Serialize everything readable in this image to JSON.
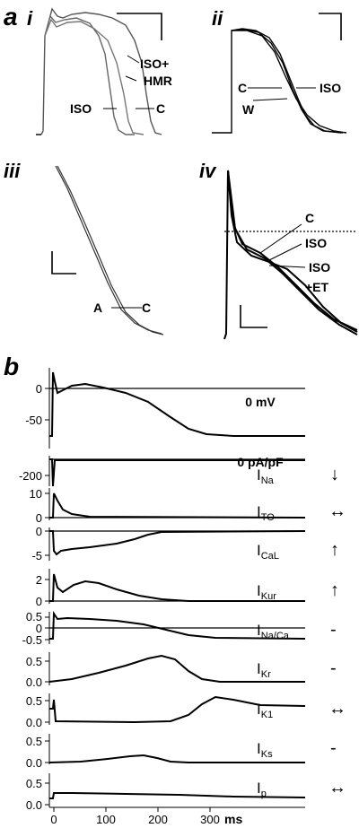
{
  "panel_a": {
    "letter": "a",
    "sub_i": "i",
    "sub_ii": "ii",
    "sub_iii": "iii",
    "sub_iv": "iv",
    "i_labels": [
      "ISO+",
      "HMR",
      "ISO",
      "C"
    ],
    "ii_labels": [
      "C",
      "ISO",
      "W"
    ],
    "iii_labels": [
      "A",
      "C"
    ],
    "iv_labels": [
      "C",
      "ISO",
      "ISO",
      "+ET"
    ]
  },
  "panel_b": {
    "letter": "b",
    "vm_label": "0 mV",
    "ina_label": "0 pA/pF",
    "x_ticks": [
      "0",
      "100",
      "200",
      "300"
    ],
    "x_unit": "ms",
    "rows": [
      {
        "ticks": [
          "0",
          "-50"
        ],
        "current": "I",
        "sub": "",
        "arrow": ""
      },
      {
        "ticks": [
          "-200"
        ],
        "current": "I",
        "sub": "Na",
        "arrow": "↓"
      },
      {
        "ticks": [
          "10",
          "0"
        ],
        "current": "I",
        "sub": "TO",
        "arrow": "↔"
      },
      {
        "ticks": [
          "0",
          "-5"
        ],
        "current": "I",
        "sub": "CaL",
        "arrow": "↑"
      },
      {
        "ticks": [
          "2",
          "0"
        ],
        "current": "I",
        "sub": "Kur",
        "arrow": "↑"
      },
      {
        "ticks": [
          "0.5",
          "0",
          "-0.5"
        ],
        "current": "I",
        "sub": "Na/Ca",
        "arrow": "-"
      },
      {
        "ticks": [
          "0.5",
          "0.0"
        ],
        "current": "I",
        "sub": "Kr",
        "arrow": "-"
      },
      {
        "ticks": [
          "0.5",
          "0.0"
        ],
        "current": "I",
        "sub": "K1",
        "arrow": "↔"
      },
      {
        "ticks": [
          "0.5",
          "0.0"
        ],
        "current": "I",
        "sub": "Ks",
        "arrow": "-"
      },
      {
        "ticks": [
          "0.5",
          "0.0"
        ],
        "current": "I",
        "sub": "p",
        "arrow": "↔"
      }
    ]
  }
}
